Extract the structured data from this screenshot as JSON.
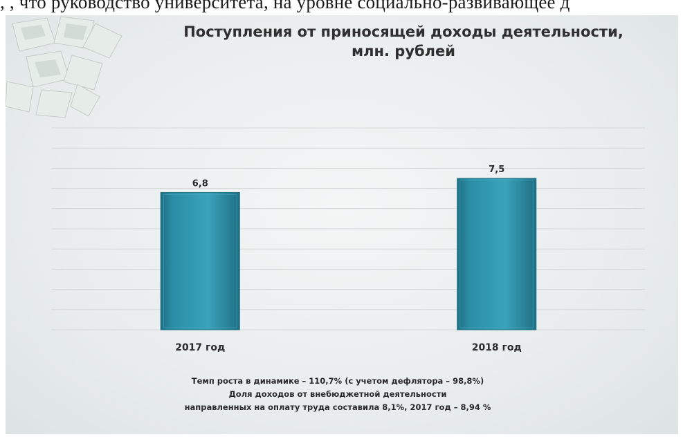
{
  "top_text": ", , что руководство университета, на уровне социально-развивающее д",
  "title_lines": [
    "Поступления от приносящей доходы деятельности,",
    "млн. рублей"
  ],
  "chart_data": {
    "type": "bar",
    "title": "Поступления от приносящей доходы деятельности, млн. рублей",
    "categories": [
      "2017 год",
      "2018 год"
    ],
    "values": [
      6.8,
      7.5
    ],
    "value_labels": [
      "6,8",
      "7,5"
    ],
    "xlabel": "",
    "ylabel": "",
    "ylim": [
      0,
      10
    ],
    "grid": true,
    "colors": {
      "bar": "#2a8da6",
      "bar_dark": "#1f6f83",
      "bar_light": "#46a9c2",
      "grid": "#d3d7d7"
    }
  },
  "footnote_lines": [
    "Темп роста в динамике – 110,7% (с учетом дефлятора – 98,8%)",
    "Доля доходов от внебюджетной деятельности",
    "направленных на оплату труда составила 8,1%, 2017 год – 8,94 %"
  ]
}
